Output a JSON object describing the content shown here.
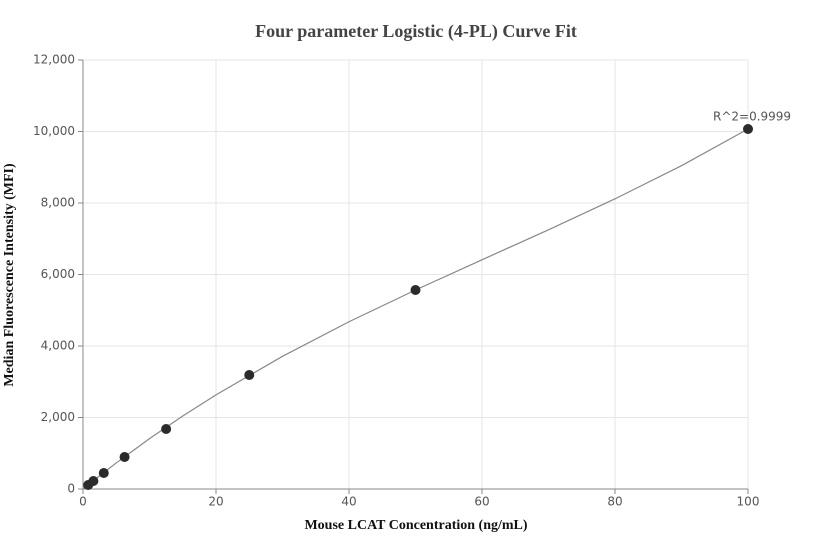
{
  "chart_data": {
    "type": "scatter",
    "title": "Four parameter Logistic (4-PL) Curve Fit",
    "x_label": "Mouse LCAT Concentration (ng/mL)",
    "y_label": "Median Fluorescence Intensity (MFI)",
    "annotation": "R^2=0.9999",
    "x": [
      0.78,
      1.56,
      3.125,
      6.25,
      12.5,
      25,
      50,
      100
    ],
    "values": [
      112,
      224,
      448,
      895,
      1678,
      3189,
      5566,
      10070
    ],
    "color": "#2b2b2b",
    "curve": {
      "x": [
        0,
        2.5,
        5,
        10,
        15,
        20,
        30,
        40,
        50,
        60,
        70,
        80,
        90,
        100
      ],
      "values": [
        0,
        371,
        729,
        1408,
        2042,
        2634,
        3712,
        4678,
        5566,
        6412,
        7251,
        8116,
        9044,
        10070
      ],
      "color": "#888888"
    },
    "xlim": [
      0,
      100
    ],
    "xticks": [
      0,
      20,
      40,
      60,
      80,
      100
    ],
    "ylim": [
      0,
      12000
    ],
    "yticks": [
      0,
      {
        "value": 2000,
        "label": "2,000"
      },
      {
        "value": 4000,
        "label": "4,000"
      },
      {
        "value": 6000,
        "label": "6,000"
      },
      {
        "value": 8000,
        "label": "8,000"
      },
      {
        "value": 10000,
        "label": "10,000"
      },
      {
        "value": 12000,
        "label": "12,000"
      }
    ],
    "grid": true
  }
}
